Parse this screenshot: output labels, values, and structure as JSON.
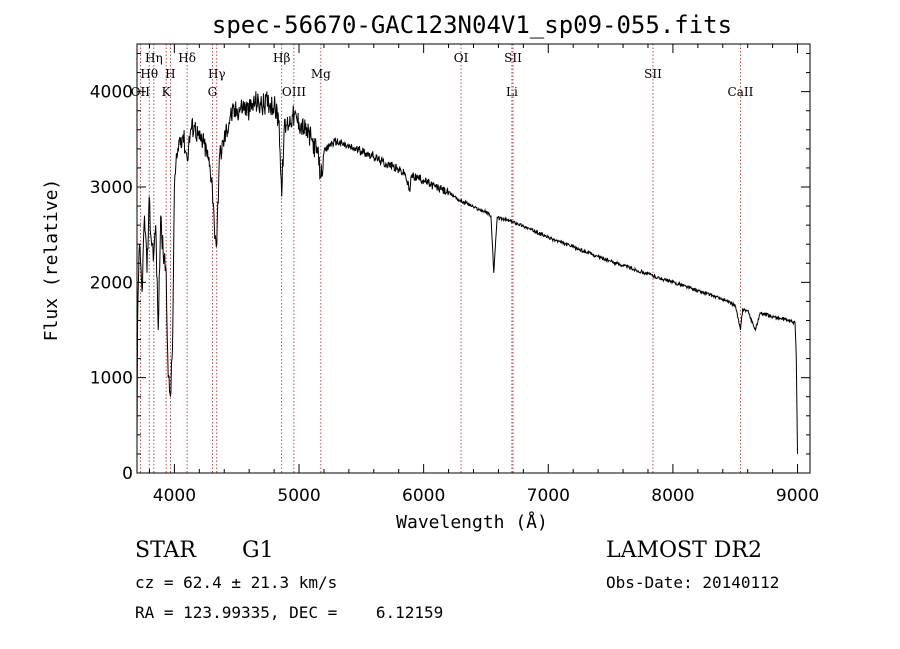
{
  "chart_data": {
    "type": "line",
    "title": "spec-56670-GAC123N04V1_sp09-055.fits",
    "xlabel": "Wavelength (Å)",
    "ylabel": "Flux (relative)",
    "xlim": [
      3700,
      9100
    ],
    "ylim": [
      0,
      4500
    ],
    "xticks": [
      4000,
      5000,
      6000,
      7000,
      8000,
      9000
    ],
    "yticks": [
      0,
      1000,
      2000,
      3000,
      4000
    ],
    "grid": false,
    "line_color": "#000000",
    "marker_color": "#b22222",
    "spectral_lines": [
      {
        "label": "Hη",
        "wavelength": 3835,
        "row": 0
      },
      {
        "label": "Hθ",
        "wavelength": 3798,
        "row": 1
      },
      {
        "label": "H",
        "wavelength": 3968,
        "row": 1
      },
      {
        "label": "Hδ",
        "wavelength": 4102,
        "row": 0
      },
      {
        "label": "Hγ",
        "wavelength": 4340,
        "row": 1
      },
      {
        "label": "Hβ",
        "wavelength": 4861,
        "row": 0
      },
      {
        "label": "Mg",
        "wavelength": 5175,
        "row": 1
      },
      {
        "label": "OI",
        "wavelength": 6300,
        "row": 0
      },
      {
        "label": "SII",
        "wavelength": 6717,
        "row": 0
      },
      {
        "label": "SII",
        "wavelength": 7840,
        "row": 1
      },
      {
        "label": "OII",
        "wavelength": 3727,
        "row": 2
      },
      {
        "label": "K",
        "wavelength": 3934,
        "row": 2
      },
      {
        "label": "G",
        "wavelength": 4305,
        "row": 2
      },
      {
        "label": "OIII",
        "wavelength": 4959,
        "row": 2
      },
      {
        "label": "Li",
        "wavelength": 6708,
        "row": 2
      },
      {
        "label": "CaII",
        "wavelength": 8542,
        "row": 2
      }
    ],
    "series": [
      {
        "points": [
          [
            3700,
            300
          ],
          [
            3705,
            1600
          ],
          [
            3720,
            2400
          ],
          [
            3740,
            1900
          ],
          [
            3760,
            2700
          ],
          [
            3780,
            2100
          ],
          [
            3798,
            2900
          ],
          [
            3810,
            2500
          ],
          [
            3835,
            2300
          ],
          [
            3850,
            2600
          ],
          [
            3870,
            1500
          ],
          [
            3890,
            2700
          ],
          [
            3910,
            2300
          ],
          [
            3934,
            2100
          ],
          [
            3950,
            1000
          ],
          [
            3968,
            800
          ],
          [
            3985,
            1300
          ],
          [
            4000,
            3000
          ],
          [
            4020,
            3300
          ],
          [
            4040,
            3500
          ],
          [
            4070,
            3550
          ],
          [
            4102,
            3300
          ],
          [
            4130,
            3600
          ],
          [
            4160,
            3650
          ],
          [
            4200,
            3500
          ],
          [
            4240,
            3450
          ],
          [
            4270,
            3300
          ],
          [
            4300,
            3100
          ],
          [
            4320,
            2600
          ],
          [
            4340,
            2400
          ],
          [
            4360,
            3300
          ],
          [
            4400,
            3500
          ],
          [
            4450,
            3750
          ],
          [
            4500,
            3800
          ],
          [
            4550,
            3850
          ],
          [
            4600,
            3800
          ],
          [
            4650,
            3900
          ],
          [
            4700,
            3850
          ],
          [
            4750,
            3900
          ],
          [
            4800,
            3850
          ],
          [
            4840,
            3700
          ],
          [
            4861,
            2900
          ],
          [
            4880,
            3600
          ],
          [
            4900,
            3650
          ],
          [
            4950,
            3750
          ],
          [
            5000,
            3680
          ],
          [
            5050,
            3600
          ],
          [
            5100,
            3500
          ],
          [
            5150,
            3350
          ],
          [
            5175,
            3100
          ],
          [
            5200,
            3350
          ],
          [
            5250,
            3450
          ],
          [
            5300,
            3480
          ],
          [
            5350,
            3450
          ],
          [
            5400,
            3420
          ],
          [
            5450,
            3400
          ],
          [
            5500,
            3380
          ],
          [
            5550,
            3350
          ],
          [
            5600,
            3320
          ],
          [
            5650,
            3280
          ],
          [
            5700,
            3240
          ],
          [
            5750,
            3220
          ],
          [
            5800,
            3180
          ],
          [
            5850,
            3140
          ],
          [
            5890,
            2950
          ],
          [
            5900,
            3120
          ],
          [
            5950,
            3100
          ],
          [
            6000,
            3070
          ],
          [
            6050,
            3030
          ],
          [
            6100,
            3000
          ],
          [
            6150,
            2970
          ],
          [
            6200,
            2940
          ],
          [
            6250,
            2900
          ],
          [
            6300,
            2850
          ],
          [
            6350,
            2830
          ],
          [
            6400,
            2790
          ],
          [
            6450,
            2760
          ],
          [
            6500,
            2740
          ],
          [
            6540,
            2700
          ],
          [
            6563,
            2100
          ],
          [
            6590,
            2680
          ],
          [
            6650,
            2660
          ],
          [
            6700,
            2640
          ],
          [
            6750,
            2620
          ],
          [
            6800,
            2590
          ],
          [
            6850,
            2560
          ],
          [
            6900,
            2530
          ],
          [
            6950,
            2500
          ],
          [
            7000,
            2470
          ],
          [
            7100,
            2420
          ],
          [
            7200,
            2370
          ],
          [
            7300,
            2320
          ],
          [
            7400,
            2270
          ],
          [
            7500,
            2220
          ],
          [
            7600,
            2180
          ],
          [
            7700,
            2130
          ],
          [
            7800,
            2090
          ],
          [
            7900,
            2040
          ],
          [
            8000,
            2000
          ],
          [
            8100,
            1960
          ],
          [
            8200,
            1910
          ],
          [
            8300,
            1870
          ],
          [
            8400,
            1820
          ],
          [
            8500,
            1760
          ],
          [
            8542,
            1500
          ],
          [
            8560,
            1720
          ],
          [
            8600,
            1700
          ],
          [
            8662,
            1500
          ],
          [
            8700,
            1680
          ],
          [
            8800,
            1640
          ],
          [
            8900,
            1610
          ],
          [
            8980,
            1580
          ],
          [
            8990,
            1200
          ],
          [
            9000,
            200
          ]
        ]
      }
    ]
  },
  "info": {
    "object_class": "STAR",
    "subclass": "G1",
    "survey": "LAMOST DR2",
    "cz_text": "cz = 62.4 ± 21.3 km/s",
    "obs_date_text": "Obs-Date: 20140112",
    "coords_text": "RA = 123.99335, DEC =    6.12159"
  }
}
